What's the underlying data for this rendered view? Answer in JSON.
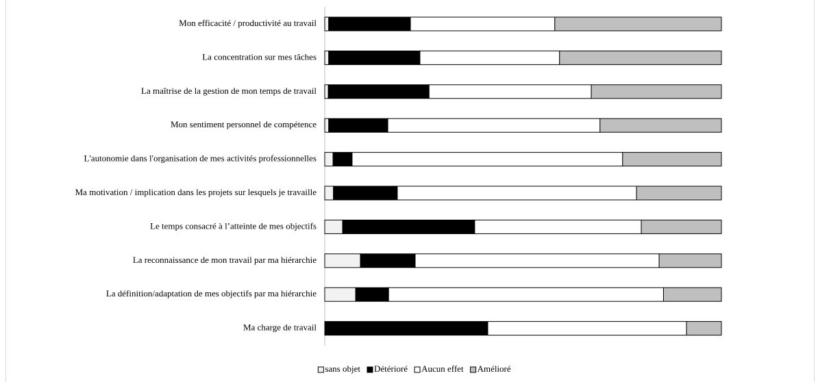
{
  "chart_data": {
    "type": "stacked_bar_horizontal",
    "categories": [
      "Mon efficacité / productivité au travail",
      "La concentration sur mes tâches",
      "La maîtrise de la gestion de mon temps de travail",
      "Mon sentiment personnel de compétence",
      "L'autonomie dans l'organisation de mes activités professionnelles",
      "Ma motivation / implication dans les projets sur lesquels je travaille",
      "Le temps consacré à l’atteinte  de mes objectifs",
      "La reconnaissance de mon travail par ma hiérarchie",
      "La définition/adaptation de mes objectifs par ma hiérarchie",
      "Ma charge de travail"
    ],
    "series": [
      {
        "name": "sans objet",
        "color": "#f2f2f2",
        "values": [
          1,
          1,
          0.9,
          1,
          2.1,
          2.2,
          4.5,
          9,
          7.8,
          0.2
        ]
      },
      {
        "name": "Détérioré",
        "color": "#000000",
        "values": [
          20.6,
          23,
          25.4,
          14.9,
          4.8,
          16.1,
          33.3,
          13.8,
          8.3,
          40.9
        ]
      },
      {
        "name": "Aucun effet",
        "color": "#ffffff",
        "values": [
          36.4,
          35.2,
          40.9,
          53.5,
          68.2,
          60.3,
          42,
          61.5,
          69.3,
          50.1
        ]
      },
      {
        "name": "Amélioré",
        "color": "#bfbfbf",
        "values": [
          42,
          40.8,
          32.8,
          30.6,
          24.9,
          21.4,
          20.2,
          15.7,
          14.6,
          8.8
        ]
      }
    ],
    "xlim": [
      0,
      100
    ],
    "legend": "bottom"
  }
}
